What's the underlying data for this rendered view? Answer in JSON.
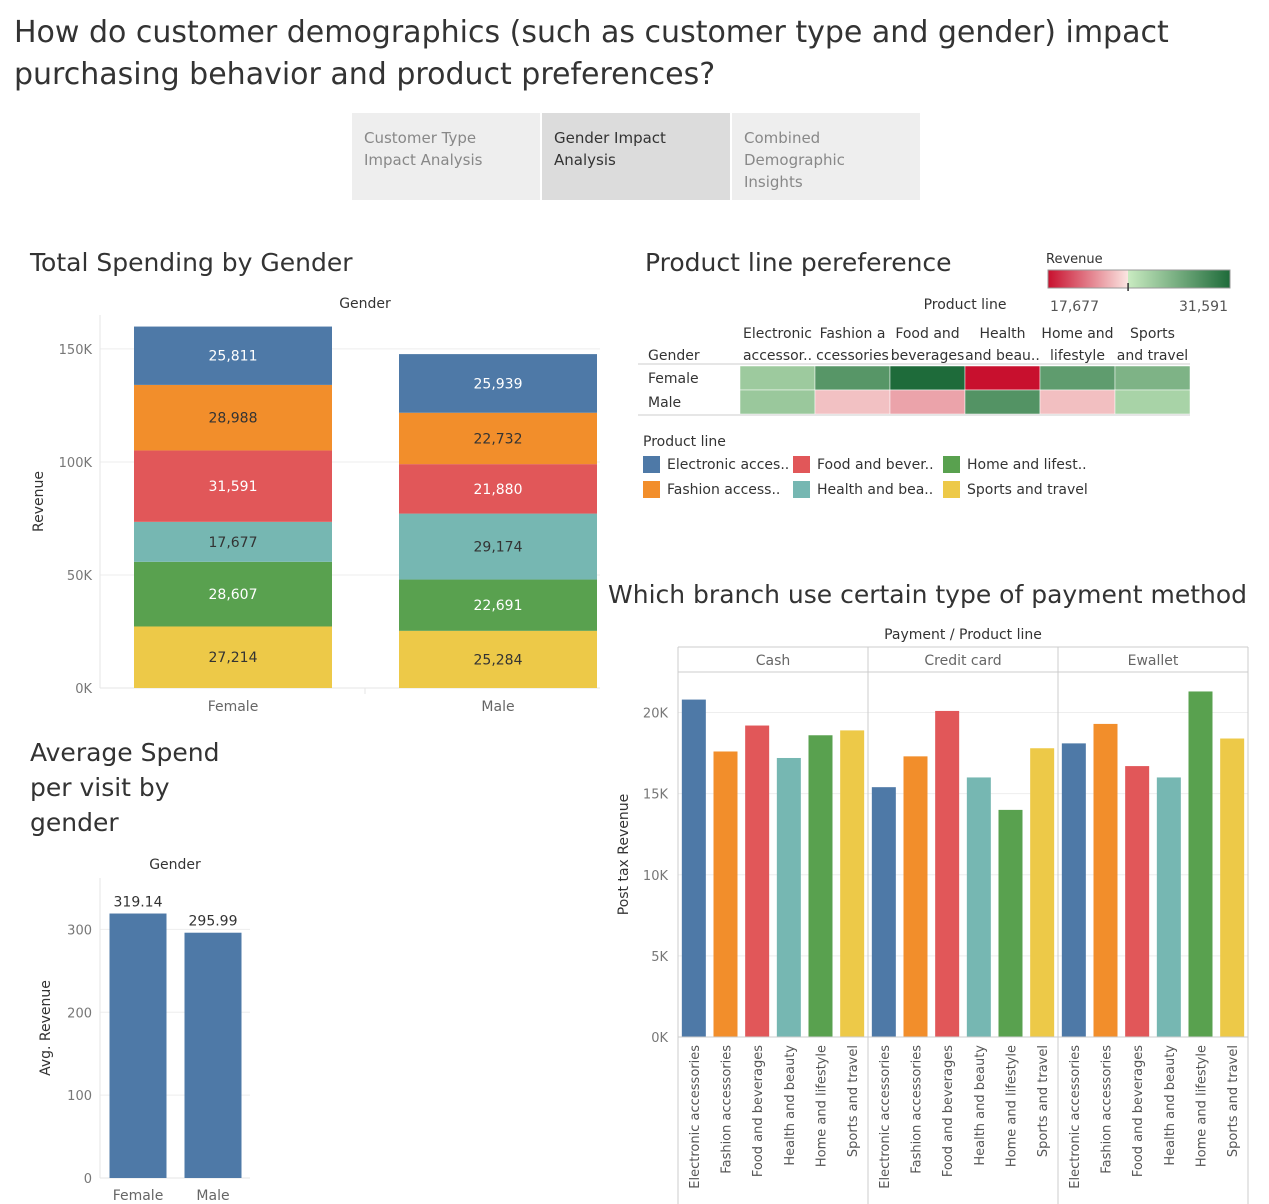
{
  "page": {
    "title": "How do customer demographics (such as customer type and gender) impact purchasing behavior and product preferences?",
    "tabs": [
      {
        "label": "Customer Type Impact Analysis",
        "active": false
      },
      {
        "label": "Gender Impact Analysis",
        "active": true
      },
      {
        "label": "Combined Demographic Insights",
        "active": false
      }
    ]
  },
  "colors": {
    "Electronic accessories": "#4e79a7",
    "Fashion accessories": "#f28e2b",
    "Food and beverages": "#e15759",
    "Health and beauty": "#76b7b2",
    "Home and lifestyle": "#59a14f",
    "Sports and travel": "#edc948"
  },
  "legend": {
    "title": "Product line",
    "items": [
      {
        "label": "Electronic acces..",
        "key": "Electronic accessories"
      },
      {
        "label": "Food and bever..",
        "key": "Food and beverages"
      },
      {
        "label": "Home and lifest..",
        "key": "Home and lifestyle"
      },
      {
        "label": "Fashion access..",
        "key": "Fashion accessories"
      },
      {
        "label": "Health and bea..",
        "key": "Health and beauty"
      },
      {
        "label": "Sports and travel",
        "key": "Sports and travel"
      }
    ]
  },
  "chart_data": [
    {
      "id": "total-spending",
      "type": "bar",
      "stacked": true,
      "title": "Total Spending by Gender",
      "header": "Gender",
      "xlabel": "",
      "ylabel": "Revenue",
      "ylim": [
        0,
        165000
      ],
      "yticks": [
        0,
        50000,
        100000,
        150000
      ],
      "ytick_labels": [
        "0K",
        "50K",
        "100K",
        "150K"
      ],
      "categories": [
        "Female",
        "Male"
      ],
      "series": [
        {
          "name": "Sports and travel",
          "values": [
            27214,
            25284
          ]
        },
        {
          "name": "Home and lifestyle",
          "values": [
            28607,
            22691
          ]
        },
        {
          "name": "Health and beauty",
          "values": [
            17677,
            29174
          ]
        },
        {
          "name": "Food and beverages",
          "values": [
            31591,
            21880
          ]
        },
        {
          "name": "Fashion accessories",
          "values": [
            28988,
            22732
          ]
        },
        {
          "name": "Electronic accessories",
          "values": [
            25811,
            25939
          ]
        }
      ],
      "data_labels": {
        "Sports and travel": [
          "27,214",
          "25,284"
        ],
        "Home and lifestyle": [
          "28,607",
          "22,691"
        ],
        "Health and beauty": [
          "17,677",
          "29,174"
        ],
        "Food and beverages": [
          "31,591",
          "21,880"
        ],
        "Fashion accessories": [
          "28,988",
          "22,732"
        ],
        "Electronic accessories": [
          "25,811",
          "25,939"
        ]
      }
    },
    {
      "id": "avg-spend",
      "type": "bar",
      "title": "Average Spend per visit by gender",
      "title_lines": [
        "Average Spend",
        "per visit by",
        "gender"
      ],
      "header": "Gender",
      "xlabel": "",
      "ylabel": "Avg. Revenue",
      "ylim": [
        0,
        362
      ],
      "yticks": [
        0,
        100,
        200,
        300
      ],
      "ytick_labels": [
        "0",
        "100",
        "200",
        "300"
      ],
      "categories": [
        "Female",
        "Male"
      ],
      "values": [
        319.14,
        295.99
      ],
      "data_labels": [
        "319.14",
        "295.99"
      ],
      "color": "#4e79a7"
    },
    {
      "id": "product-preference",
      "type": "heatmap",
      "title": "Product line pereference",
      "header": "Product line",
      "row_header": "Gender",
      "rows": [
        "Female",
        "Male"
      ],
      "columns": [
        "Electronic accessories",
        "Fashion accessories",
        "Food and beverages",
        "Health and beauty",
        "Home and lifestyle",
        "Sports and travel"
      ],
      "column_labels": [
        [
          "Electronic",
          "accessor.."
        ],
        [
          "Fashion a",
          "ccessories"
        ],
        [
          "Food and",
          "beverages"
        ],
        [
          "Health",
          "and beau.."
        ],
        [
          "Home and",
          "lifestyle"
        ],
        [
          "Sports",
          "and travel"
        ]
      ],
      "values": [
        [
          25811,
          28988,
          31591,
          17677,
          28607,
          27214
        ],
        [
          25939,
          22732,
          21880,
          29174,
          22691,
          25284
        ]
      ],
      "color_legend": {
        "title": "Revenue",
        "min": 17677,
        "max": 31591,
        "min_label": "17,677",
        "max_label": "31,591",
        "center": 23800,
        "colors": [
          "#c8102e",
          "#fbe6e2",
          "#c9ebc1",
          "#1e6b3a"
        ]
      }
    },
    {
      "id": "payment-branch",
      "type": "bar",
      "title": "Which branch use certain type of payment method",
      "header": "Payment  /  Product line",
      "xlabel": "",
      "ylabel": "Post tax Revenue",
      "ylim": [
        0,
        22500
      ],
      "yticks": [
        0,
        5000,
        10000,
        15000,
        20000
      ],
      "ytick_labels": [
        "0K",
        "5K",
        "10K",
        "15K",
        "20K"
      ],
      "panels": [
        "Cash",
        "Credit card",
        "Ewallet"
      ],
      "categories": [
        "Electronic accessories",
        "Fashion accessories",
        "Food and beverages",
        "Health and beauty",
        "Home and lifestyle",
        "Sports and travel"
      ],
      "values": [
        [
          20800,
          17600,
          19200,
          17200,
          18600,
          18900
        ],
        [
          15400,
          17300,
          20100,
          16000,
          14000,
          17800
        ],
        [
          18100,
          19300,
          16700,
          16000,
          21300,
          18400
        ]
      ]
    }
  ]
}
